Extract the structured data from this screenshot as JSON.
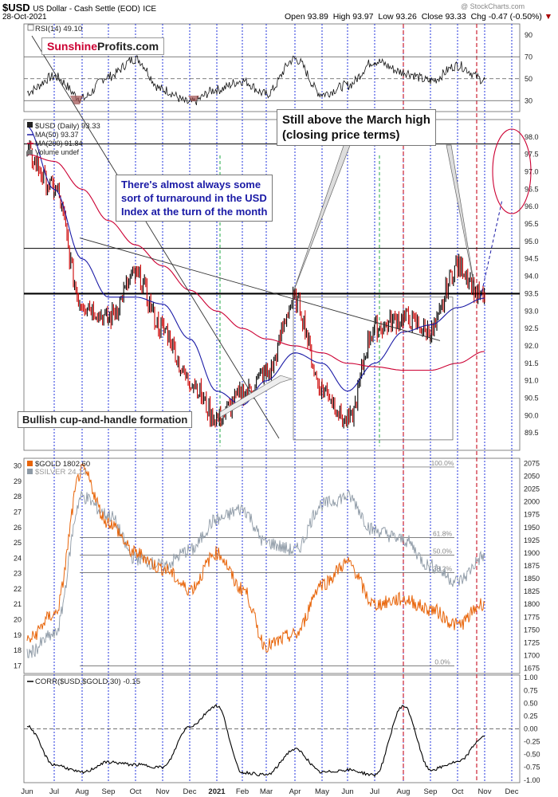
{
  "header": {
    "symbol": "$USD",
    "description": "US Dollar - Cash Settle (EOD)",
    "exchange": "ICE",
    "date": "28-Oct-2021",
    "open": "Open 93.89",
    "high": "High 93.97",
    "low": "Low 93.26",
    "close": "Close 93.33",
    "chg": "Chg -0.47 (-0.50%)",
    "watermark": "@ StockCharts.com"
  },
  "logo": {
    "brand1": "Sunshine",
    "brand2": "Profits.com"
  },
  "annotations": {
    "march_high": "Still above the March high\n(closing price terms)",
    "turnaround": "There's almost always some\nsort of turnaround in the USD\nIndex at the turn of the month",
    "cup_handle": "Bullish cup-and-handle formation"
  },
  "x_axis": {
    "labels": [
      "Jun",
      "Jul",
      "Aug",
      "Sep",
      "Oct",
      "Nov",
      "Dec",
      "2021",
      "Feb",
      "Mar",
      "Apr",
      "May",
      "Jun",
      "Jul",
      "Aug",
      "Sep",
      "Oct",
      "Nov",
      "Dec"
    ]
  },
  "colors": {
    "price_up": "#000000",
    "price_down": "#cc0000",
    "ma50": "#1a1aa6",
    "ma200": "#cc0033",
    "gold": "#e8650a",
    "silver": "#8e9aa6",
    "blue_vline": "#2233dd",
    "green_vline": "#22aa44",
    "red_vline": "#cc2233",
    "logo_red": "#cc0033",
    "annotation_blue": "#1a1aa6"
  },
  "chart_data": [
    {
      "type": "line",
      "panel": "rsi",
      "title": "RSI(14) 49.10",
      "ylim": [
        20,
        100
      ],
      "y_ticks": [
        30,
        50,
        70,
        90
      ],
      "series": [
        {
          "name": "RSI(14)",
          "x": [
            "Jun",
            "Jul",
            "Aug",
            "Sep",
            "Oct",
            "Nov",
            "Dec",
            "2021",
            "Feb",
            "Mar",
            "Apr",
            "May",
            "Jun",
            "Jul",
            "Aug",
            "Sep",
            "Oct",
            "Nov"
          ],
          "values": [
            38,
            52,
            32,
            52,
            68,
            40,
            28,
            40,
            48,
            36,
            68,
            36,
            44,
            66,
            56,
            48,
            62,
            49
          ]
        }
      ]
    },
    {
      "type": "line",
      "panel": "usd",
      "title": "$USD (Daily) 93.33",
      "legend": [
        "MA(50) 93.37",
        "MA(200) 91.84",
        "Volume undef"
      ],
      "ylim": [
        89,
        98.5
      ],
      "y_ticks": [
        89.5,
        90.0,
        90.5,
        91.0,
        91.5,
        92.0,
        92.5,
        93.0,
        93.5,
        94.0,
        94.5,
        95.0,
        95.5,
        96.0,
        96.5,
        97.0,
        97.5,
        98.0
      ],
      "series": [
        {
          "name": "$USD (Daily)",
          "x": [
            "Jun",
            "Jul",
            "Aug",
            "Sep",
            "Oct",
            "Nov",
            "Dec",
            "2021",
            "Feb",
            "Mar",
            "Apr",
            "May",
            "Jun",
            "Jul",
            "Aug",
            "Sep",
            "Oct",
            "Nov"
          ],
          "values": [
            97.5,
            96.5,
            93.2,
            92.8,
            94.0,
            92.5,
            91.0,
            89.9,
            90.6,
            91.2,
            93.3,
            90.8,
            89.8,
            92.5,
            92.8,
            92.4,
            94.3,
            93.33
          ]
        },
        {
          "name": "MA(50)",
          "x": [
            "Jun",
            "Jul",
            "Aug",
            "Sep",
            "Oct",
            "Nov",
            "Dec",
            "2021",
            "Feb",
            "Mar",
            "Apr",
            "May",
            "Jun",
            "Jul",
            "Aug",
            "Sep",
            "Oct",
            "Nov"
          ],
          "values": [
            98.3,
            96.5,
            94.5,
            93.4,
            93.4,
            93.2,
            92.2,
            90.7,
            90.3,
            91.0,
            91.8,
            91.5,
            90.7,
            91.5,
            92.4,
            92.6,
            93.1,
            93.37
          ]
        },
        {
          "name": "MA(200)",
          "x": [
            "Jun",
            "Jul",
            "Aug",
            "Sep",
            "Oct",
            "Nov",
            "Dec",
            "2021",
            "Feb",
            "Mar",
            "Apr",
            "May",
            "Jun",
            "Jul",
            "Aug",
            "Sep",
            "Oct",
            "Nov"
          ],
          "values": [
            97.5,
            97.3,
            96.5,
            95.6,
            94.9,
            94.3,
            93.6,
            93.0,
            92.5,
            92.2,
            92.0,
            91.8,
            91.5,
            91.4,
            91.3,
            91.3,
            91.5,
            91.84
          ]
        }
      ],
      "horizontal_lines": [
        97.8,
        94.8,
        93.5
      ]
    },
    {
      "type": "line",
      "panel": "gold_silver",
      "legend": [
        "$GOLD 1802.60",
        "$SILVER 24.12"
      ],
      "ylim_left": [
        16.5,
        30.5
      ],
      "y_ticks_left": [
        17,
        18,
        19,
        20,
        21,
        22,
        23,
        24,
        25,
        26,
        27,
        28,
        29,
        30
      ],
      "ylim_right": [
        1665,
        2085
      ],
      "y_ticks_right": [
        1675,
        1700,
        1725,
        1750,
        1775,
        1800,
        1825,
        1850,
        1875,
        1900,
        1925,
        1950,
        1975,
        2000,
        2025,
        2050,
        2075
      ],
      "fib_levels": [
        "100.0%",
        "61.8%",
        "50.0%",
        "38.2%",
        "0.0%"
      ],
      "series": [
        {
          "name": "$GOLD",
          "x": [
            "Jun",
            "Jul",
            "Aug",
            "Sep",
            "Oct",
            "Nov",
            "Dec",
            "2021",
            "Feb",
            "Mar",
            "Apr",
            "May",
            "Jun",
            "Jul",
            "Aug",
            "Sep",
            "Oct",
            "Nov"
          ],
          "values": [
            1730,
            1780,
            2060,
            1960,
            1900,
            1870,
            1830,
            1900,
            1830,
            1720,
            1740,
            1840,
            1880,
            1800,
            1810,
            1790,
            1760,
            1802.6
          ]
        },
        {
          "name": "$SILVER",
          "x": [
            "Jun",
            "Jul",
            "Aug",
            "Sep",
            "Oct",
            "Nov",
            "Dec",
            "2021",
            "Feb",
            "Mar",
            "Apr",
            "May",
            "Jun",
            "Jul",
            "Aug",
            "Sep",
            "Oct",
            "Nov"
          ],
          "values": [
            17.8,
            19.0,
            28.0,
            26.8,
            24.0,
            23.5,
            24.5,
            26.5,
            27.2,
            25.0,
            24.5,
            27.5,
            28.0,
            25.8,
            25.2,
            23.5,
            22.5,
            24.12
          ]
        }
      ]
    },
    {
      "type": "line",
      "panel": "corr",
      "title": "CORR($USD,$GOLD,30) -0.15",
      "ylim": [
        -1.05,
        1.05
      ],
      "y_ticks": [
        -1.0,
        -0.75,
        -0.5,
        -0.25,
        0.0,
        0.25,
        0.5,
        0.75,
        1.0
      ],
      "series": [
        {
          "name": "CORR($USD,$GOLD,30)",
          "x": [
            "Jun",
            "Jul",
            "Aug",
            "Sep",
            "Oct",
            "Nov",
            "Dec",
            "2021",
            "Feb",
            "Mar",
            "Apr",
            "May",
            "Jun",
            "Jul",
            "Aug",
            "Sep",
            "Oct",
            "Nov"
          ],
          "values": [
            0.05,
            -0.7,
            -0.85,
            -0.65,
            -0.7,
            -0.75,
            0.05,
            0.45,
            -0.85,
            -0.9,
            -0.4,
            -0.85,
            -0.8,
            -0.9,
            0.45,
            -0.8,
            -0.65,
            -0.15
          ]
        }
      ]
    }
  ]
}
